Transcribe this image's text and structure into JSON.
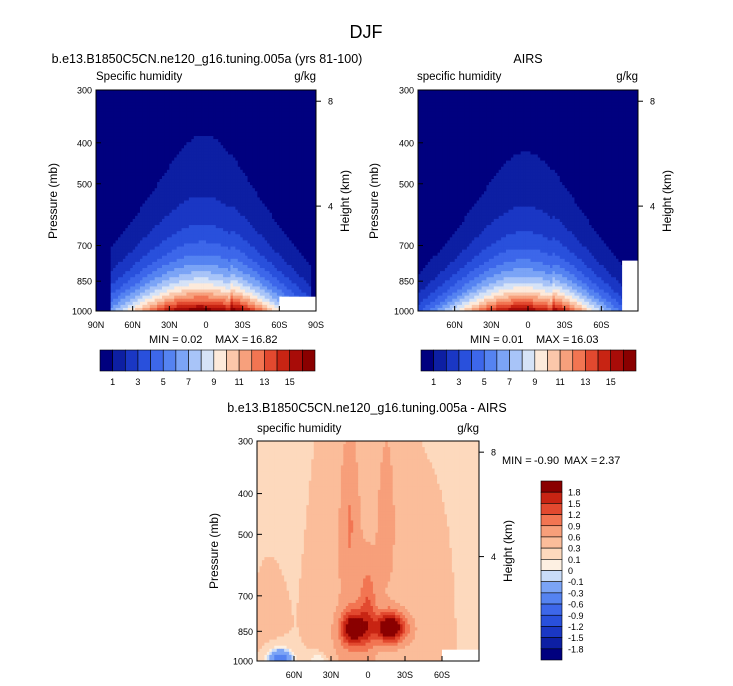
{
  "figure": {
    "title": "DJF"
  },
  "chart_data": [
    {
      "type": "heatmap",
      "panel": "model",
      "title": "b.e13.B1850C5CN.ne120_g16.tuning.005a (yrs 81-100)",
      "left_label": "Specific humidity",
      "right_label": "g/kg",
      "ylabel": "Pressure (mb)",
      "ylabel_right": "Height (km)",
      "xticks": [
        "90N",
        "60N",
        "30N",
        "0",
        "30S",
        "60S",
        "90S"
      ],
      "xtick_lat": [
        90,
        60,
        30,
        0,
        -30,
        -60,
        -90
      ],
      "xlim": [
        90,
        -90
      ],
      "yticks": [
        "300",
        "400",
        "500",
        "700",
        "850",
        "1000"
      ],
      "ytick_p": [
        300,
        400,
        500,
        700,
        850,
        1000
      ],
      "ylim": [
        1000,
        300
      ],
      "height_ticks": [
        "8",
        "4"
      ],
      "height_km": [
        8,
        4
      ],
      "min_label": "MIN =",
      "min_value": "0.02",
      "max_label": "MAX =",
      "max_value": "16.82",
      "colorbar_labels": [
        "1",
        "3",
        "5",
        "7",
        "9",
        "11",
        "13",
        "15"
      ],
      "colorbar_levels": [
        1,
        2,
        3,
        4,
        5,
        6,
        7,
        8,
        9,
        10,
        11,
        12,
        13,
        14,
        15
      ],
      "peak_value": 16.82,
      "peak_lat": 5,
      "missing_box": {
        "lat_from": -60,
        "lat_to": -90,
        "p_from": 925,
        "p_to": 1000
      }
    },
    {
      "type": "heatmap",
      "panel": "obs",
      "title": "AIRS",
      "left_label": "specific humidity",
      "right_label": "g/kg",
      "ylabel": "Pressure (mb)",
      "ylabel_right": "Height (km)",
      "xticks": [
        "60N",
        "30N",
        "0",
        "30S",
        "60S"
      ],
      "xtick_lat": [
        60,
        30,
        0,
        -30,
        -60
      ],
      "xlim": [
        90,
        -90
      ],
      "yticks": [
        "300",
        "400",
        "500",
        "700",
        "850",
        "1000"
      ],
      "ytick_p": [
        300,
        400,
        500,
        700,
        850,
        1000
      ],
      "ylim": [
        1000,
        300
      ],
      "height_ticks": [
        "8",
        "4"
      ],
      "height_km": [
        8,
        4
      ],
      "min_label": "MIN =",
      "min_value": "0.01",
      "max_label": "MAX =",
      "max_value": "16.03",
      "colorbar_labels": [
        "1",
        "3",
        "5",
        "7",
        "9",
        "11",
        "13",
        "15"
      ],
      "colorbar_levels": [
        1,
        2,
        3,
        4,
        5,
        6,
        7,
        8,
        9,
        10,
        11,
        12,
        13,
        14,
        15
      ],
      "peak_value": 16.03,
      "peak_lat": 5,
      "missing_box": {
        "lat_from": -77,
        "lat_to": -90,
        "p_from": 760,
        "p_to": 1000
      }
    },
    {
      "type": "heatmap",
      "panel": "difference",
      "title": "b.e13.B1850C5CN.ne120_g16.tuning.005a - AIRS",
      "left_label": "specific humidity",
      "right_label": "g/kg",
      "ylabel": "Pressure (mb)",
      "ylabel_right": "Height (km)",
      "xticks": [
        "60N",
        "30N",
        "0",
        "30S",
        "60S"
      ],
      "xtick_lat": [
        60,
        30,
        0,
        -30,
        -60
      ],
      "xlim": [
        90,
        -90
      ],
      "yticks": [
        "300",
        "400",
        "500",
        "700",
        "850",
        "1000"
      ],
      "ytick_p": [
        300,
        400,
        500,
        700,
        850,
        1000
      ],
      "ylim": [
        1000,
        300
      ],
      "height_ticks": [
        "8",
        "4"
      ],
      "height_km": [
        8,
        4
      ],
      "min_label": "MIN =",
      "min_value": "-0.90",
      "max_label": "MAX =",
      "max_value": "2.37",
      "colorbar_labels": [
        "1.8",
        "1.5",
        "1.2",
        "0.9",
        "0.6",
        "0.3",
        "0.1",
        "0",
        "-0.1",
        "-0.3",
        "-0.6",
        "-0.9",
        "-1.2",
        "-1.5",
        "-1.8"
      ],
      "colorbar_levels": [
        1.8,
        1.5,
        1.2,
        0.9,
        0.6,
        0.3,
        0.1,
        0,
        -0.1,
        -0.3,
        -0.6,
        -0.9,
        -1.2,
        -1.5,
        -1.8
      ],
      "missing_box": {
        "lat_from": -60,
        "lat_to": -90,
        "p_from": 940,
        "p_to": 1000
      }
    }
  ],
  "colormaps": {
    "humidity": [
      "#00007f",
      "#0d1fa3",
      "#1a37c4",
      "#2950dc",
      "#3d67ea",
      "#5583f1",
      "#7ba4f6",
      "#a8c4f8",
      "#d6e3f7",
      "#fdeadb",
      "#fbc7aa",
      "#f7a07c",
      "#f27552",
      "#e2492f",
      "#c82413",
      "#a80c08",
      "#8a0000"
    ],
    "difference": [
      "#00007f",
      "#0d1fa3",
      "#1a37c4",
      "#2950dc",
      "#3d67ea",
      "#5583f1",
      "#7ba4f6",
      "#c9dcf8",
      "#fdf0e2",
      "#fdd9bd",
      "#fbbd9a",
      "#f79f7a",
      "#f27552",
      "#e2492f",
      "#c82413",
      "#8a0000"
    ]
  }
}
